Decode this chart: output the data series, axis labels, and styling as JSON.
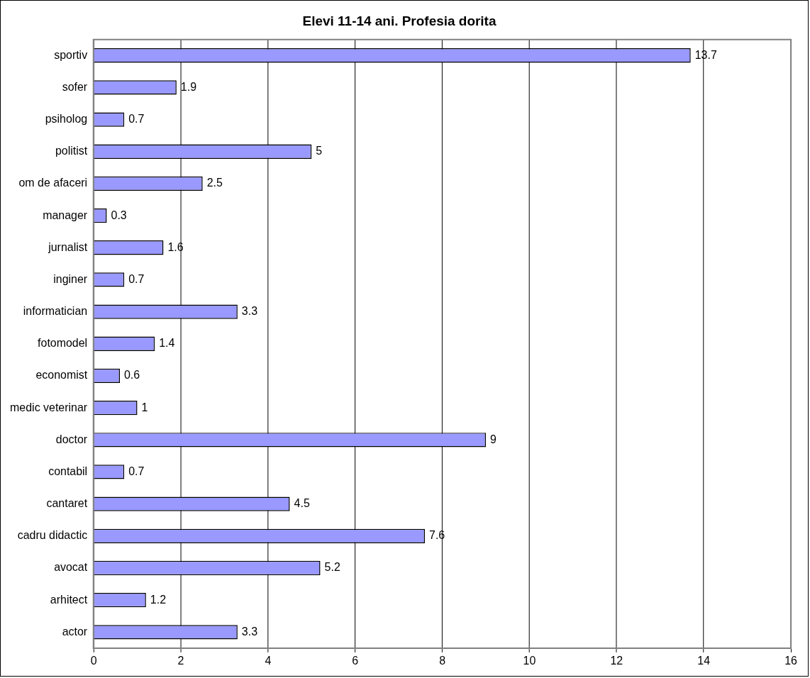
{
  "chart_data": {
    "type": "bar",
    "orientation": "horizontal",
    "title": "Elevi 11-14 ani. Profesia dorita",
    "categories": [
      "sportiv",
      "sofer",
      "psiholog",
      "politist",
      "om de afaceri",
      "manager",
      "jurnalist",
      "inginer",
      "informatician",
      "fotomodel",
      "economist",
      "medic veterinar",
      "doctor",
      "contabil",
      "cantaret",
      "cadru didactic",
      "avocat",
      "arhitect",
      "actor"
    ],
    "values": [
      13.7,
      1.9,
      0.7,
      5,
      2.5,
      0.3,
      1.6,
      0.7,
      3.3,
      1.4,
      0.6,
      1,
      9,
      0.7,
      4.5,
      7.6,
      5.2,
      1.2,
      3.3
    ],
    "color": "#9999ff",
    "xlim": [
      0,
      16
    ],
    "xticks": [
      0,
      2,
      4,
      6,
      8,
      10,
      12,
      14,
      16
    ],
    "grid": "x",
    "legend": false,
    "data_labels": true
  }
}
